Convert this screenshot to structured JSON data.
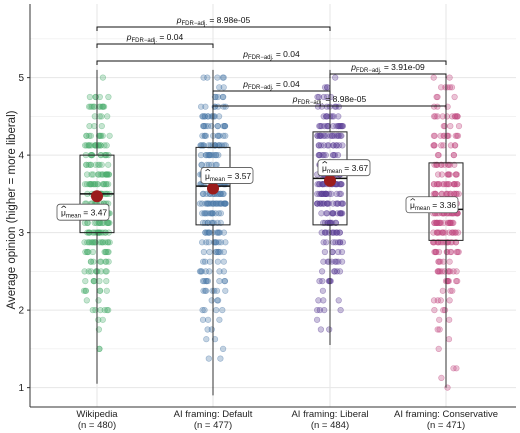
{
  "chart_data": {
    "type": "scatter",
    "subtype": "jittered strip plot with boxplots and mean markers",
    "ylabel": "Average opinion (higher = more liberal)",
    "xlabel": "",
    "ylim": [
      0.75,
      5.95
    ],
    "y_ticks": [
      1,
      2,
      3,
      4,
      5
    ],
    "grid": true,
    "groups": [
      {
        "label_line1": "Wikipedia",
        "label_line2": "(n = 480)",
        "n": 480,
        "color": "#4daf6f",
        "mean": 3.47,
        "mean_label": "= 3.47",
        "box": {
          "min": 1.05,
          "q1": 3.0,
          "median": 3.5,
          "q3": 4.0,
          "max": 5.1
        }
      },
      {
        "label_line1": "AI framing: Default",
        "label_line2": "(n = 477)",
        "n": 477,
        "color": "#4a78a8",
        "mean": 3.57,
        "mean_label": "= 3.57",
        "box": {
          "min": 0.9,
          "q1": 3.1,
          "median": 3.6,
          "q3": 4.1,
          "max": 5.1
        }
      },
      {
        "label_line1": "AI framing: Liberal",
        "label_line2": "(n = 484)",
        "n": 484,
        "color": "#5b3e96",
        "mean": 3.67,
        "mean_label": "= 3.67",
        "box": {
          "min": 1.55,
          "q1": 3.1,
          "median": 3.7,
          "q3": 4.3,
          "max": 5.1
        }
      },
      {
        "label_line1": "AI framing: Conservative",
        "label_line2": "(n = 471)",
        "n": 471,
        "color": "#c2477f",
        "mean": 3.36,
        "mean_label": "= 3.36",
        "box": {
          "min": 1.0,
          "q1": 2.9,
          "median": 3.3,
          "q3": 3.9,
          "max": 5.05
        }
      }
    ],
    "mean_symbol": "μ",
    "mean_subscript": "mean",
    "mean_color": "#9b1c1c",
    "significance": [
      {
        "from": 0,
        "to": 2,
        "p": "= 8.98e-05"
      },
      {
        "from": 0,
        "to": 1,
        "p": "= 0.04"
      },
      {
        "from": 0,
        "to": 3,
        "p": "= 0.04"
      },
      {
        "from": 2,
        "to": 3,
        "p": "= 3.91e-09"
      },
      {
        "from": 1,
        "to": 2,
        "p": "= 0.04"
      },
      {
        "from": 1,
        "to": 3,
        "p": "= 8.98e-05"
      }
    ],
    "p_label_main": "p",
    "p_label_sub": "FDR−adj."
  }
}
